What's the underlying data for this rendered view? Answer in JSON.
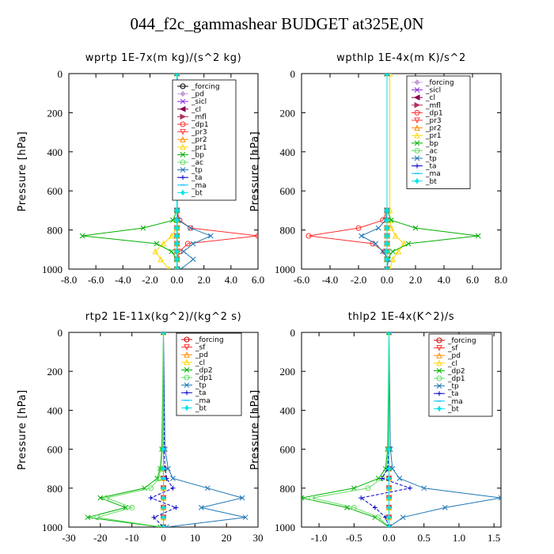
{
  "figure": {
    "title": "044_f2c_gammashear  BUDGET at325E,0N"
  },
  "chart_data": [
    {
      "type": "line",
      "title": "wprtp  1E-7x(m kg)/(s^2 kg)",
      "ylabel": "Pressure [hPa]",
      "xlim": [
        -8,
        6
      ],
      "ylim": [
        1000,
        0
      ],
      "xticks": [
        "-8.0",
        "-6.0",
        "-4.0",
        "-2.0",
        "0.0",
        "2.0",
        "4.0",
        "6.0"
      ],
      "yticks": [
        "0",
        "200",
        "400",
        "600",
        "800",
        "1000"
      ],
      "legend_position": "top-right",
      "y": [
        0,
        700,
        750,
        790,
        830,
        870,
        910,
        950,
        1000
      ],
      "series": [
        {
          "name": "_forcing",
          "color": "#000000",
          "marker": "circle",
          "values": [
            0,
            0,
            0,
            0,
            0,
            0,
            0,
            0,
            0
          ]
        },
        {
          "name": "_pd",
          "color": "#c8a0d8",
          "marker": "diamond",
          "values": [
            0,
            0,
            0,
            0,
            0,
            0,
            0,
            0,
            0
          ]
        },
        {
          "name": "_sicl",
          "color": "#8a2be2",
          "marker": "x",
          "values": [
            0,
            0,
            0,
            0,
            0,
            0,
            0,
            0,
            0
          ]
        },
        {
          "name": "_cl",
          "color": "#8b0050",
          "marker": "tri-left",
          "values": [
            0,
            0,
            0,
            0,
            0,
            0,
            0,
            0,
            0
          ]
        },
        {
          "name": "_mfl",
          "color": "#b03060",
          "marker": "tri-right",
          "values": [
            0,
            0,
            0,
            0,
            0,
            0,
            0,
            0,
            0
          ]
        },
        {
          "name": "_dp1",
          "color": "#ff3030",
          "marker": "circle",
          "values": [
            0,
            0,
            0.2,
            1.0,
            6.0,
            0.8,
            0.2,
            0,
            0
          ]
        },
        {
          "name": "_pr3",
          "color": "#ff4040",
          "marker": "tri-down",
          "values": [
            0,
            0,
            0,
            0,
            0,
            0,
            0,
            0,
            0
          ]
        },
        {
          "name": "_pr2",
          "color": "#ff8c00",
          "marker": "tri-up",
          "values": [
            0,
            0,
            0,
            0,
            0,
            0,
            0,
            0,
            0
          ]
        },
        {
          "name": "_pr1",
          "color": "#ffd700",
          "marker": "tri-up",
          "values": [
            0,
            0,
            0,
            0,
            -0.4,
            -1.0,
            -1.6,
            -1.2,
            -0.6
          ]
        },
        {
          "name": "_bp",
          "color": "#00b000",
          "marker": "x",
          "values": [
            0,
            0,
            -0.3,
            -2.5,
            -7.0,
            -1.5,
            -0.4,
            0,
            0
          ]
        },
        {
          "name": "_ac",
          "color": "#66dd66",
          "marker": "circle",
          "values": [
            0,
            0,
            0,
            0,
            0,
            0,
            0,
            0,
            0
          ]
        },
        {
          "name": "_tp",
          "color": "#1f77b4",
          "marker": "x",
          "values": [
            0,
            0,
            0.1,
            1.0,
            2.5,
            1.2,
            0.5,
            1.2,
            0.3
          ]
        },
        {
          "name": "_ta",
          "color": "#0000cc",
          "marker": "plus",
          "values": [
            0,
            0,
            0,
            0,
            0,
            0,
            0,
            0,
            0
          ]
        },
        {
          "name": "_ma",
          "color": "#00bfff",
          "marker": "dash",
          "values": [
            0,
            0,
            0,
            0,
            0,
            0,
            0,
            0,
            0
          ]
        },
        {
          "name": "_bt",
          "color": "#00e5e5",
          "marker": "star",
          "values": [
            0,
            0,
            0,
            0,
            0,
            0,
            0,
            0,
            0
          ]
        }
      ]
    },
    {
      "type": "line",
      "title": "wpthlp  1E-4x(m K)/s^2",
      "ylabel": "Pressure [hPa]",
      "xlim": [
        -6,
        8
      ],
      "ylim": [
        1000,
        0
      ],
      "xticks": [
        "-6.0",
        "-4.0",
        "-2.0",
        "0.0",
        "2.0",
        "4.0",
        "6.0",
        "8.0"
      ],
      "yticks": [
        "0",
        "200",
        "400",
        "600",
        "800",
        "1000"
      ],
      "legend_position": "top-right",
      "y": [
        0,
        700,
        750,
        790,
        830,
        870,
        910,
        950,
        1000
      ],
      "series": [
        {
          "name": "_forcing",
          "color": "#c8a0d8",
          "marker": "diamond",
          "values": [
            0,
            0,
            0,
            0,
            0,
            0,
            0,
            0,
            0
          ]
        },
        {
          "name": "_sicl",
          "color": "#8a2be2",
          "marker": "x",
          "values": [
            0,
            0,
            0,
            0,
            0,
            0,
            0,
            0,
            0
          ]
        },
        {
          "name": "_cl",
          "color": "#8b0050",
          "marker": "tri-left",
          "values": [
            0,
            0,
            0,
            0,
            0,
            0,
            0,
            0,
            0
          ]
        },
        {
          "name": "_mfl",
          "color": "#b03060",
          "marker": "tri-right",
          "values": [
            0,
            0,
            0,
            0,
            0,
            0,
            0,
            0,
            0
          ]
        },
        {
          "name": "_dp1",
          "color": "#ff3030",
          "marker": "circle",
          "values": [
            0,
            0,
            -0.3,
            -2.0,
            -5.5,
            -1.0,
            -0.2,
            0,
            0
          ]
        },
        {
          "name": "_pr3",
          "color": "#ff4040",
          "marker": "tri-down",
          "values": [
            0,
            0,
            0,
            0,
            0,
            0,
            0,
            0,
            0
          ]
        },
        {
          "name": "_pr2",
          "color": "#ff8c00",
          "marker": "tri-up",
          "values": [
            0,
            0,
            0,
            0,
            0,
            0,
            0,
            0,
            0
          ]
        },
        {
          "name": "_pr1",
          "color": "#ffd700",
          "marker": "tri-up",
          "values": [
            0.2,
            0.2,
            0.2,
            0.3,
            0.6,
            1.2,
            0.8,
            0.4,
            0.2
          ]
        },
        {
          "name": "_bp",
          "color": "#00b000",
          "marker": "x",
          "values": [
            0,
            0,
            0.3,
            2.0,
            6.4,
            1.5,
            0.4,
            0,
            0
          ]
        },
        {
          "name": "_ac",
          "color": "#66dd66",
          "marker": "circle",
          "values": [
            0,
            0,
            0,
            0,
            0,
            0,
            0,
            0,
            0
          ]
        },
        {
          "name": "_tp",
          "color": "#1f77b4",
          "marker": "x",
          "values": [
            0,
            0,
            -0.1,
            -0.6,
            -1.8,
            -0.8,
            -0.3,
            0.1,
            0
          ]
        },
        {
          "name": "_ta",
          "color": "#0000cc",
          "marker": "plus",
          "values": [
            0,
            0,
            0,
            0,
            0,
            0,
            0,
            0,
            0
          ]
        },
        {
          "name": "_ma",
          "color": "#00bfff",
          "marker": "dash",
          "values": [
            0,
            0,
            0,
            0,
            0,
            0,
            0,
            0,
            0
          ]
        },
        {
          "name": "_bt",
          "color": "#00e5e5",
          "marker": "star",
          "values": [
            0,
            0,
            0,
            0,
            0,
            0,
            0,
            0,
            0
          ]
        }
      ]
    },
    {
      "type": "line",
      "title": "rtp2  1E-11x(kg^2)/(kg^2 s)",
      "ylabel": "Pressure [hPa]",
      "xlim": [
        -30,
        30
      ],
      "ylim": [
        1000,
        0
      ],
      "xticks": [
        "-30",
        "-20",
        "-10",
        "0",
        "10",
        "20",
        "30"
      ],
      "yticks": [
        "0",
        "200",
        "400",
        "600",
        "800",
        "1000"
      ],
      "legend_position": "top-right",
      "y": [
        0,
        600,
        700,
        750,
        800,
        850,
        900,
        950,
        1000
      ],
      "series": [
        {
          "name": "_forcing",
          "color": "#cc0000",
          "marker": "circle",
          "values": [
            0,
            0,
            0,
            0,
            0,
            0,
            0,
            0,
            0
          ]
        },
        {
          "name": "_sf",
          "color": "#ff3030",
          "marker": "tri-down",
          "values": [
            0,
            0,
            0,
            0,
            0,
            0,
            0,
            0,
            0
          ]
        },
        {
          "name": "_pd",
          "color": "#ff8c00",
          "marker": "tri-up",
          "values": [
            0,
            0,
            0,
            0,
            0,
            0,
            0,
            0,
            0
          ]
        },
        {
          "name": "_cl",
          "color": "#ffd700",
          "marker": "tri-up",
          "values": [
            0,
            0,
            0,
            0,
            0,
            0,
            0,
            0,
            0
          ]
        },
        {
          "name": "_dp2",
          "color": "#00b000",
          "marker": "x",
          "values": [
            0,
            -0.5,
            -1.0,
            -2.0,
            -6.0,
            -20.0,
            -12.0,
            -24.0,
            -1.0
          ]
        },
        {
          "name": "_dp1",
          "color": "#66dd66",
          "marker": "circle",
          "values": [
            0,
            -0.3,
            -0.8,
            -1.5,
            -4.0,
            -18.0,
            -10.0,
            -21.0,
            -0.5
          ]
        },
        {
          "name": "_tp",
          "color": "#1f77b4",
          "marker": "x",
          "values": [
            0,
            0.5,
            1.5,
            3.0,
            14.0,
            25.0,
            12.0,
            26.0,
            1.0
          ]
        },
        {
          "name": "_ta",
          "color": "#0000cc",
          "marker": "plus",
          "values": [
            0,
            0.2,
            0.5,
            1.0,
            3.0,
            -4.0,
            4.0,
            -3.0,
            0
          ]
        },
        {
          "name": "_ma",
          "color": "#00bfff",
          "marker": "dash",
          "values": [
            0,
            0,
            0,
            0,
            0,
            0,
            0,
            0,
            0
          ]
        },
        {
          "name": "_bt",
          "color": "#00e5e5",
          "marker": "star",
          "values": [
            0,
            0,
            0,
            0,
            0,
            0,
            0,
            0,
            0
          ]
        }
      ]
    },
    {
      "type": "line",
      "title": "thlp2  1E-4x(K^2)/s",
      "ylabel": "Pressure [hPa]",
      "xlim": [
        -1.25,
        1.6
      ],
      "ylim": [
        1000,
        0
      ],
      "xticks": [
        "-1.0",
        "-0.5",
        "0.0",
        "0.5",
        "1.0",
        "1.5"
      ],
      "xtick_values": [
        -1.0,
        -0.5,
        0.0,
        0.5,
        1.0,
        1.5
      ],
      "yticks": [
        "0",
        "200",
        "400",
        "600",
        "800",
        "1000"
      ],
      "legend_position": "top-right",
      "y": [
        0,
        600,
        700,
        750,
        800,
        850,
        900,
        950,
        1000
      ],
      "series": [
        {
          "name": "_forcing",
          "color": "#cc0000",
          "marker": "circle",
          "values": [
            0,
            0,
            0,
            0,
            0,
            0,
            0,
            0,
            0
          ]
        },
        {
          "name": "_sf",
          "color": "#ff3030",
          "marker": "tri-down",
          "values": [
            0,
            0,
            0,
            0,
            0,
            0,
            0,
            0,
            0
          ]
        },
        {
          "name": "_pd",
          "color": "#ff8c00",
          "marker": "tri-up",
          "values": [
            0,
            0,
            0,
            0,
            0,
            0,
            0,
            0,
            0
          ]
        },
        {
          "name": "_cl",
          "color": "#ffd700",
          "marker": "tri-up",
          "values": [
            0,
            0,
            0,
            0,
            0,
            0,
            0,
            0,
            0
          ]
        },
        {
          "name": "_dp2",
          "color": "#00b000",
          "marker": "x",
          "values": [
            0,
            -0.02,
            -0.05,
            -0.15,
            -0.5,
            -1.25,
            -0.6,
            -0.2,
            0
          ]
        },
        {
          "name": "_dp1",
          "color": "#66dd66",
          "marker": "circle",
          "values": [
            0,
            -0.01,
            -0.03,
            -0.1,
            -0.3,
            -1.1,
            -0.5,
            -0.15,
            0
          ]
        },
        {
          "name": "_tp",
          "color": "#1f77b4",
          "marker": "x",
          "values": [
            0,
            0.02,
            0.05,
            0.15,
            0.5,
            1.6,
            0.8,
            0.2,
            0
          ]
        },
        {
          "name": "_ta",
          "color": "#0000cc",
          "marker": "plus",
          "values": [
            0,
            0,
            -0.02,
            -0.1,
            0.3,
            -0.4,
            -0.2,
            -0.05,
            0
          ]
        },
        {
          "name": "_ma",
          "color": "#00bfff",
          "marker": "dash",
          "values": [
            0,
            0,
            0,
            0,
            0,
            0,
            0,
            0,
            0
          ]
        },
        {
          "name": "_bt",
          "color": "#00e5e5",
          "marker": "star",
          "values": [
            0,
            0,
            0,
            0,
            0,
            0,
            0,
            0,
            0
          ]
        }
      ]
    }
  ]
}
